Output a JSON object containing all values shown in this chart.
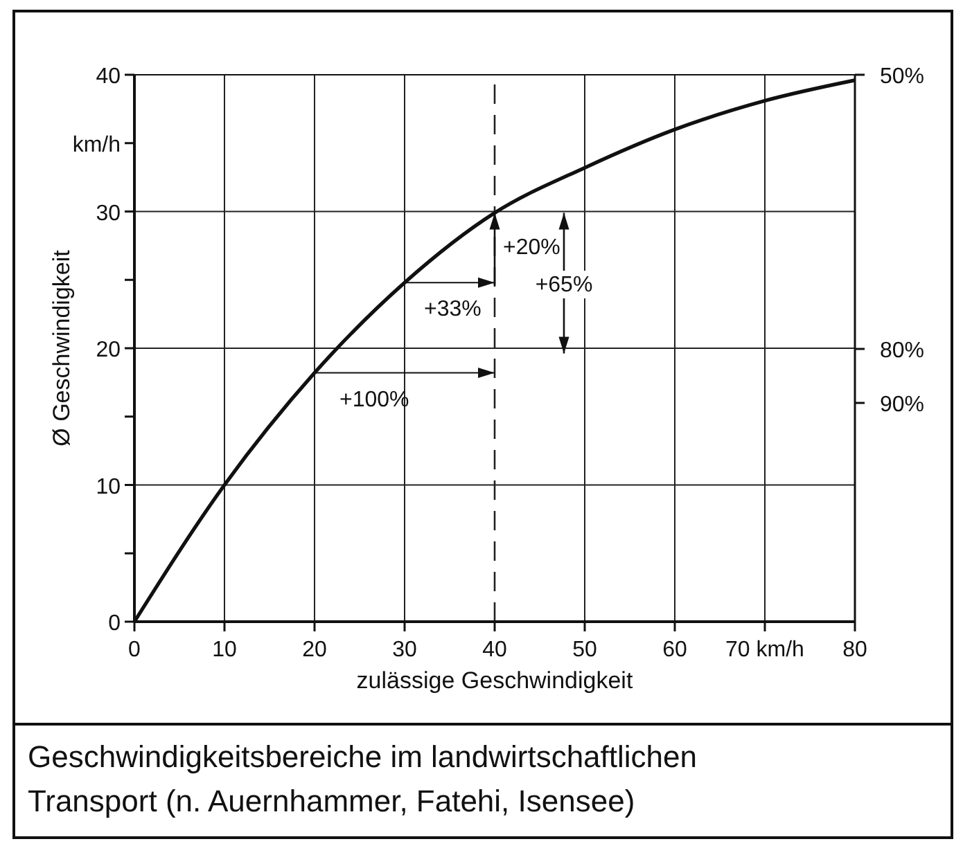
{
  "chart_data": {
    "type": "line",
    "title": "Geschwindigkeitsbereiche im landwirtschaftlichen Transport (n. Auernhammer, Fatehi, Isensee)",
    "xlabel": "zulässige Geschwindigkeit",
    "ylabel": "Ø Geschwindigkeit",
    "x": [
      0,
      10,
      20,
      30,
      40,
      50,
      60,
      70,
      80
    ],
    "series": [
      {
        "color": "#111111",
        "values": [
          0,
          10,
          18.2,
          24.8,
          29.9,
          33.2,
          36.0,
          38.1,
          39.6
        ]
      }
    ],
    "xlim": [
      0,
      80
    ],
    "xticks": [
      0,
      10,
      20,
      30,
      40,
      50,
      60,
      {
        "value": 70,
        "label": "70 km/h"
      },
      80
    ],
    "ylim": [
      0,
      40
    ],
    "yticks": [
      0,
      {
        "value": 5,
        "label": null
      },
      10,
      {
        "value": 15,
        "label": null
      },
      20,
      {
        "value": 25,
        "label": null
      },
      30,
      {
        "value": 35,
        "label": "km/h"
      },
      40
    ],
    "ref_lines": [
      {
        "axis": "x",
        "value": 40,
        "line_style": "dashed"
      }
    ],
    "annotations": [
      {
        "text": "+100%",
        "x": 20,
        "y": 18.2
      },
      {
        "text": "+33%",
        "x": 30,
        "y": 24.8
      },
      {
        "text": "+20%",
        "x": 40,
        "y": 29.9
      },
      "+65%",
      "50%",
      "80%",
      "90%"
    ],
    "grid": true,
    "marker": "none",
    "line_style": "solid"
  }
}
